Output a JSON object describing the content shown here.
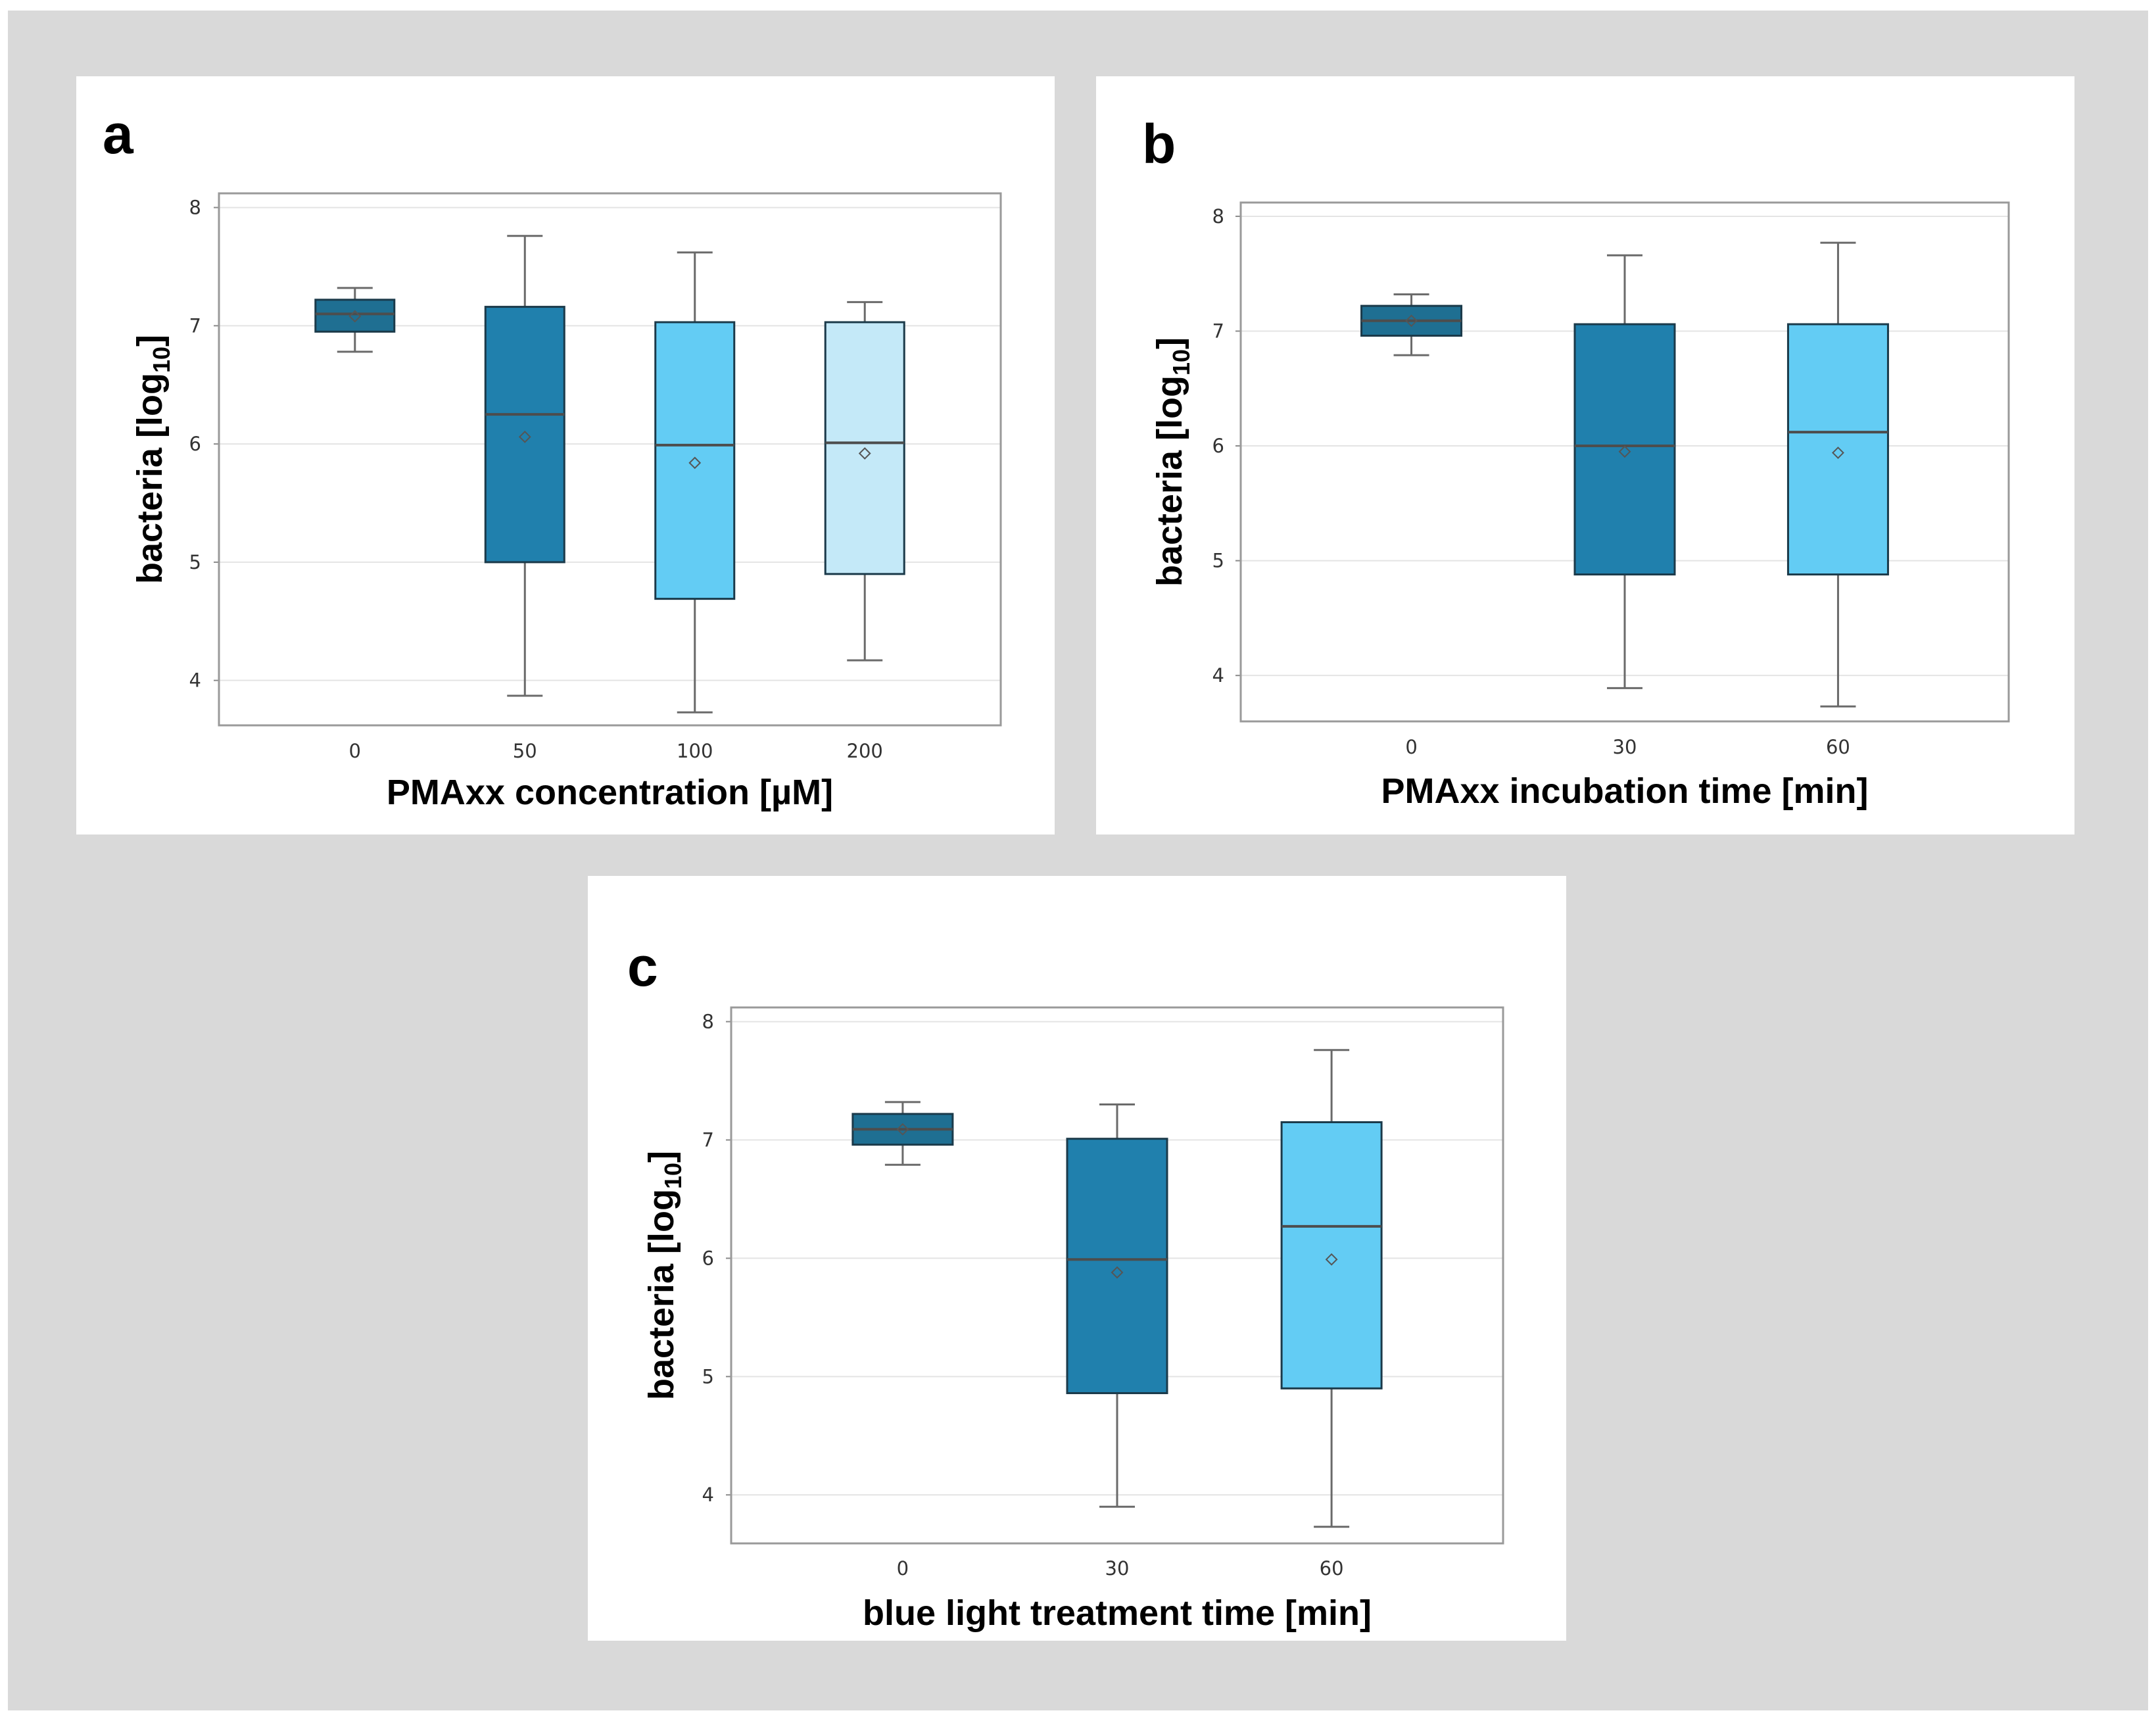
{
  "chart_data": [
    {
      "id": "a",
      "panel_label": "a",
      "type": "boxplot",
      "xlabel": "PMAxx concentration [µM]",
      "ylabel_main": "bacteria [log",
      "ylabel_sub": "10",
      "ylabel_end": "]",
      "ylim": [
        3.62,
        8.12
      ],
      "yticks": [
        "4",
        "5",
        "6",
        "7",
        "8"
      ],
      "grid": true,
      "categories": [
        "0",
        "50",
        "100",
        "200"
      ],
      "boxes": [
        {
          "category": "0",
          "min": 6.78,
          "q1": 6.95,
          "median": 7.1,
          "q3": 7.22,
          "max": 7.32,
          "mean": 7.08,
          "color": "#1f6f92"
        },
        {
          "category": "50",
          "min": 3.87,
          "q1": 5.0,
          "median": 6.25,
          "q3": 7.16,
          "max": 7.76,
          "mean": 6.06,
          "color": "#2080ad"
        },
        {
          "category": "100",
          "min": 3.73,
          "q1": 4.69,
          "median": 5.99,
          "q3": 7.03,
          "max": 7.62,
          "mean": 5.84,
          "color": "#63ccf4"
        },
        {
          "category": "200",
          "min": 4.17,
          "q1": 4.9,
          "median": 6.01,
          "q3": 7.03,
          "max": 7.2,
          "mean": 5.92,
          "color": "#c4e9f8"
        }
      ]
    },
    {
      "id": "b",
      "panel_label": "b",
      "type": "boxplot",
      "xlabel": "PMAxx incubation time [min]",
      "ylabel_main": "bacteria [log",
      "ylabel_sub": "10",
      "ylabel_end": "]",
      "ylim": [
        3.6,
        8.12
      ],
      "yticks": [
        "4",
        "5",
        "6",
        "7",
        "8"
      ],
      "grid": true,
      "categories": [
        "0",
        "30",
        "60"
      ],
      "boxes": [
        {
          "category": "0",
          "min": 6.79,
          "q1": 6.96,
          "median": 7.09,
          "q3": 7.22,
          "max": 7.32,
          "mean": 7.09,
          "color": "#1f6f92"
        },
        {
          "category": "30",
          "min": 3.89,
          "q1": 4.88,
          "median": 6.0,
          "q3": 7.06,
          "max": 7.66,
          "mean": 5.95,
          "color": "#2080ad"
        },
        {
          "category": "60",
          "min": 3.73,
          "q1": 4.88,
          "median": 6.12,
          "q3": 7.06,
          "max": 7.77,
          "mean": 5.94,
          "color": "#63ccf4"
        }
      ]
    },
    {
      "id": "c",
      "panel_label": "c",
      "type": "boxplot",
      "xlabel": "blue light treatment time [min]",
      "ylabel_main": "bacteria [log",
      "ylabel_sub": "10",
      "ylabel_end": "]",
      "ylim": [
        3.59,
        8.12
      ],
      "yticks": [
        "4",
        "5",
        "6",
        "7",
        "8"
      ],
      "grid": true,
      "categories": [
        "0",
        "30",
        "60"
      ],
      "boxes": [
        {
          "category": "0",
          "min": 6.79,
          "q1": 6.96,
          "median": 7.09,
          "q3": 7.22,
          "max": 7.32,
          "mean": 7.09,
          "color": "#1f6f92"
        },
        {
          "category": "30",
          "min": 3.9,
          "q1": 4.86,
          "median": 5.99,
          "q3": 7.01,
          "max": 7.3,
          "mean": 5.88,
          "color": "#2080ad"
        },
        {
          "category": "60",
          "min": 3.73,
          "q1": 4.9,
          "median": 6.27,
          "q3": 7.15,
          "max": 7.76,
          "mean": 5.99,
          "color": "#63ccf4"
        }
      ]
    }
  ]
}
